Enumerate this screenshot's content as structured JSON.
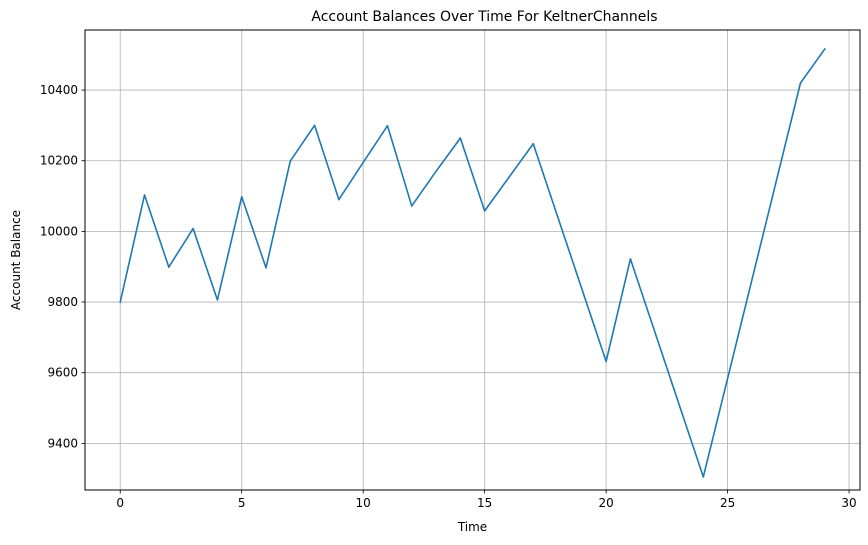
{
  "chart_data": {
    "type": "line",
    "title": "Account Balances Over Time For KeltnerChannels",
    "xlabel": "Time",
    "ylabel": "Account Balance",
    "xlim": [
      -1.45,
      30.45
    ],
    "ylim": [
      9268,
      10570
    ],
    "xticks": [
      0,
      5,
      10,
      15,
      20,
      25,
      30
    ],
    "yticks": [
      9400,
      9600,
      9800,
      10000,
      10200,
      10400
    ],
    "grid": true,
    "legend": "none",
    "series": [
      {
        "color": "#1f77b4",
        "points": [
          [
            0,
            9800
          ],
          [
            1,
            10103
          ],
          [
            2,
            9899
          ],
          [
            3,
            10008
          ],
          [
            4,
            9806
          ],
          [
            5,
            10098
          ],
          [
            6,
            9897
          ],
          [
            7,
            10199
          ],
          [
            8,
            10300
          ],
          [
            9,
            10090
          ],
          [
            10,
            10195
          ],
          [
            11,
            10299
          ],
          [
            12,
            10072
          ],
          [
            13,
            10170
          ],
          [
            14,
            10264
          ],
          [
            15,
            10058
          ],
          [
            16,
            10153
          ],
          [
            17,
            10248
          ],
          [
            20,
            9632
          ],
          [
            21,
            9922
          ],
          [
            24,
            9305
          ],
          [
            28,
            10420
          ],
          [
            29,
            10516
          ]
        ]
      }
    ]
  }
}
